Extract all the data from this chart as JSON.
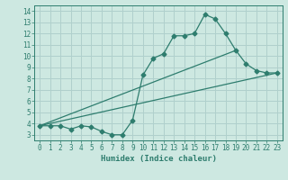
{
  "xlabel": "Humidex (Indice chaleur)",
  "background_color": "#cde8e1",
  "grid_color": "#b0d0cc",
  "line_color": "#2e7d6e",
  "xlim": [
    -0.5,
    23.5
  ],
  "ylim": [
    2.5,
    14.5
  ],
  "xticks": [
    0,
    1,
    2,
    3,
    4,
    5,
    6,
    7,
    8,
    9,
    10,
    11,
    12,
    13,
    14,
    15,
    16,
    17,
    18,
    19,
    20,
    21,
    22,
    23
  ],
  "yticks": [
    3,
    4,
    5,
    6,
    7,
    8,
    9,
    10,
    11,
    12,
    13,
    14
  ],
  "curve_x": [
    0,
    1,
    2,
    3,
    4,
    5,
    6,
    7,
    8,
    9,
    10,
    11,
    12,
    13,
    14,
    15,
    16,
    17,
    18,
    19,
    20,
    21,
    22,
    23
  ],
  "curve_y": [
    3.8,
    3.8,
    3.8,
    3.5,
    3.8,
    3.7,
    3.3,
    3.0,
    3.0,
    4.3,
    8.3,
    9.8,
    10.2,
    11.8,
    11.8,
    12.0,
    13.7,
    13.3,
    12.0,
    10.5,
    9.3,
    8.7,
    8.5,
    8.5
  ],
  "line1_x": [
    0,
    19
  ],
  "line1_y": [
    3.8,
    10.5
  ],
  "line2_x": [
    0,
    23
  ],
  "line2_y": [
    3.8,
    8.5
  ],
  "line3_x": [
    0,
    20
  ],
  "line3_y": [
    3.8,
    10.5
  ]
}
